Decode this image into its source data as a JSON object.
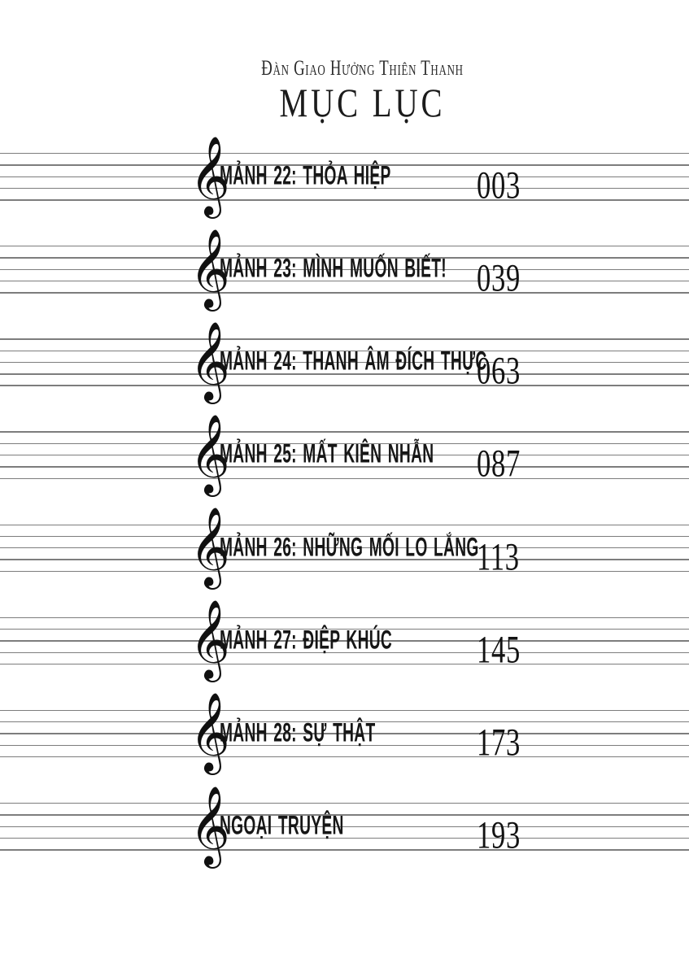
{
  "page": {
    "series_title": "Đàn Giao Hưởng Thiên Thanh",
    "title": "MỤC LỤC"
  },
  "icons": {
    "treble_clef": "𝄞"
  },
  "colors": {
    "ink": "#161616",
    "staff_line": "#7d7d7d",
    "background": "#ffffff"
  },
  "entries": [
    {
      "label": "MẢNH 22: THỎA HIỆP",
      "page": "003"
    },
    {
      "label": "MẢNH 23: MÌNH MUỐN BIẾT!",
      "page": "039"
    },
    {
      "label": "MẢNH 24: THANH ÂM ĐÍCH THỰC",
      "page": "063"
    },
    {
      "label": "MẢNH 25: MẤT KIÊN NHẪN",
      "page": "087"
    },
    {
      "label": "MẢNH 26: NHỮNG MỐI LO LẮNG",
      "page": "113"
    },
    {
      "label": "MẢNH 27: ĐIỆP KHÚC",
      "page": "145"
    },
    {
      "label": "MẢNH 28: SỰ THẬT",
      "page": "173"
    },
    {
      "label": "NGOẠI TRUYỆN",
      "page": "193"
    }
  ]
}
